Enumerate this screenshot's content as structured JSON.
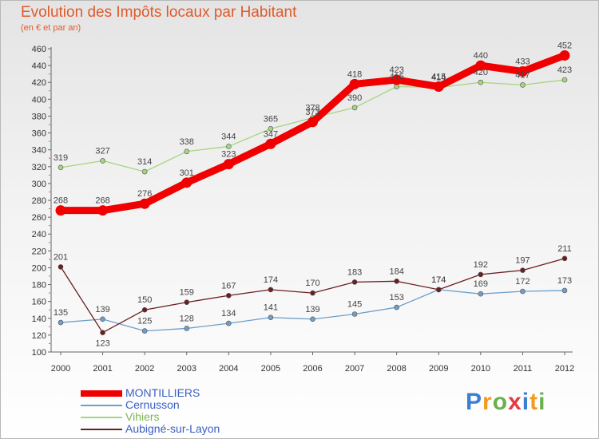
{
  "title": "Evolution des Impôts locaux par Habitant",
  "subtitle": "(en € et par an)",
  "brand": {
    "text": "Proxiti",
    "colors": [
      "#3b7fd4",
      "#f29a21",
      "#6ab04c",
      "#e63946",
      "#3b7fd4",
      "#f29a21",
      "#6ab04c"
    ]
  },
  "chart_data": {
    "type": "line",
    "title": "Evolution des Impôts locaux par Habitant",
    "subtitle": "(en € et par an)",
    "x": [
      "2000",
      "2001",
      "2002",
      "2003",
      "2004",
      "2005",
      "2006",
      "2007",
      "2008",
      "2009",
      "2010",
      "2011",
      "2012"
    ],
    "ylim": [
      100,
      460
    ],
    "yticks": [
      100,
      120,
      140,
      160,
      180,
      200,
      220,
      240,
      260,
      280,
      300,
      320,
      340,
      360,
      380,
      400,
      420,
      440,
      460
    ],
    "grid": false,
    "legend_position": "bottom-left",
    "series": [
      {
        "name": "MONTILLIERS",
        "color": "#f00000",
        "values": [
          268,
          268,
          276,
          301,
          323,
          347,
          373,
          418,
          423,
          415,
          440,
          433,
          452
        ]
      },
      {
        "name": "Cernusson",
        "color": "#6e9ec9",
        "values": [
          135,
          139,
          125,
          128,
          134,
          141,
          139,
          145,
          153,
          174,
          169,
          172,
          173
        ]
      },
      {
        "name": "Vihiers",
        "color": "#a4d67f",
        "values": [
          319,
          327,
          314,
          338,
          344,
          365,
          378,
          390,
          415,
          414,
          420,
          417,
          423
        ]
      },
      {
        "name": "Aubigné-sur-Layon",
        "color": "#6b1f22",
        "values": [
          201,
          123,
          150,
          159,
          167,
          174,
          170,
          183,
          184,
          174,
          192,
          197,
          211
        ]
      }
    ]
  }
}
